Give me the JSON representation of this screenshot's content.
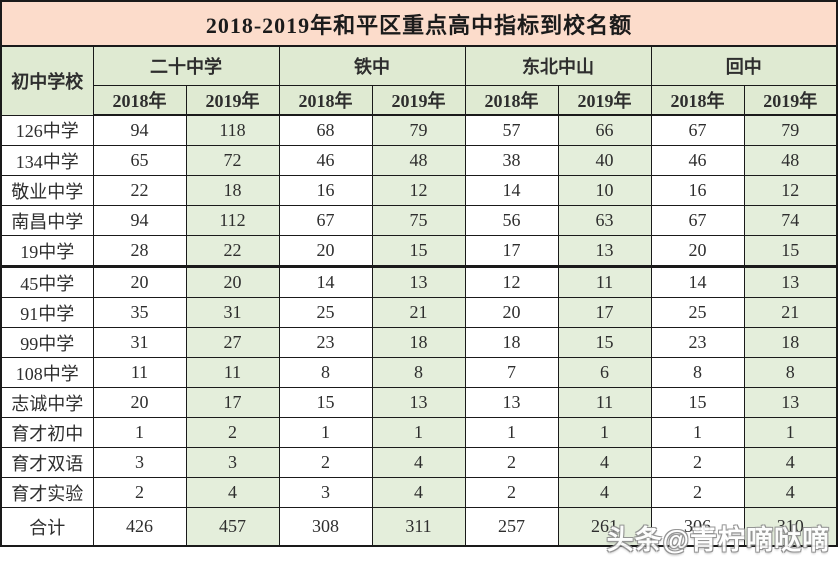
{
  "chart_data": {
    "type": "table",
    "title": "2018-2019年和平区重点高中指标到校名额",
    "row_header": "初中学校",
    "col_groups": [
      "二十中学",
      "铁中",
      "东北中山",
      "回中"
    ],
    "year_headers": [
      "2018年",
      "2019年",
      "2018年",
      "2019年",
      "2018年",
      "2019年",
      "2018年",
      "2019年"
    ],
    "rows": [
      {
        "school": "126中学",
        "values": [
          94,
          118,
          68,
          79,
          57,
          66,
          67,
          79
        ]
      },
      {
        "school": "134中学",
        "values": [
          65,
          72,
          46,
          48,
          38,
          40,
          46,
          48
        ]
      },
      {
        "school": "敬业中学",
        "values": [
          22,
          18,
          16,
          12,
          14,
          10,
          16,
          12
        ]
      },
      {
        "school": "南昌中学",
        "values": [
          94,
          112,
          67,
          75,
          56,
          63,
          67,
          74
        ]
      },
      {
        "school": "19中学",
        "values": [
          28,
          22,
          20,
          15,
          17,
          13,
          20,
          15
        ]
      },
      {
        "school": "45中学",
        "values": [
          20,
          20,
          14,
          13,
          12,
          11,
          14,
          13
        ]
      },
      {
        "school": "91中学",
        "values": [
          35,
          31,
          25,
          21,
          20,
          17,
          25,
          21
        ]
      },
      {
        "school": "99中学",
        "values": [
          31,
          27,
          23,
          18,
          18,
          15,
          23,
          18
        ]
      },
      {
        "school": "108中学",
        "values": [
          11,
          11,
          8,
          8,
          7,
          6,
          8,
          8
        ]
      },
      {
        "school": "志诚中学",
        "values": [
          20,
          17,
          15,
          13,
          13,
          11,
          15,
          13
        ]
      },
      {
        "school": "育才初中",
        "values": [
          1,
          2,
          1,
          1,
          1,
          1,
          1,
          1
        ]
      },
      {
        "school": "育才双语",
        "values": [
          3,
          3,
          2,
          4,
          2,
          4,
          2,
          4
        ]
      },
      {
        "school": "育才实验",
        "values": [
          2,
          4,
          3,
          4,
          2,
          4,
          2,
          4
        ]
      }
    ],
    "total": {
      "label": "合计",
      "values": [
        426,
        457,
        308,
        311,
        257,
        261,
        306,
        310
      ]
    }
  },
  "watermark": {
    "text": "头条@青柠嘀哒嘀"
  },
  "colors": {
    "title_bg": "#fcdccb",
    "header_bg": "#dfead2",
    "green_col_bg": "#e4eedb",
    "border": "#1a1a1a"
  }
}
